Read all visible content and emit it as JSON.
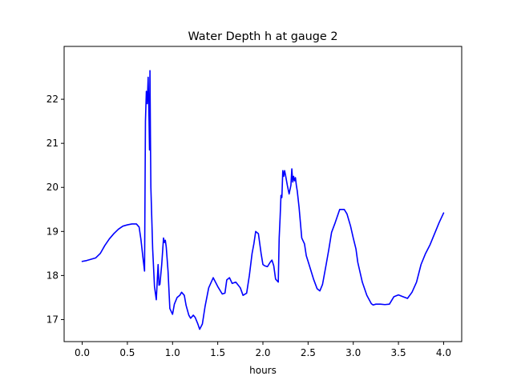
{
  "chart_data": {
    "type": "line",
    "title": "Water Depth h at gauge 2",
    "xlabel": "hours",
    "ylabel": "",
    "xlim": [
      -0.2,
      4.2
    ],
    "ylim": [
      16.5,
      23.2
    ],
    "xticks": [
      0.0,
      0.5,
      1.0,
      1.5,
      2.0,
      2.5,
      3.0,
      3.5,
      4.0
    ],
    "xtick_labels": [
      "0.0",
      "0.5",
      "1.0",
      "1.5",
      "2.0",
      "2.5",
      "3.0",
      "3.5",
      "4.0"
    ],
    "yticks": [
      17,
      18,
      19,
      20,
      21,
      22
    ],
    "ytick_labels": [
      "17",
      "18",
      "19",
      "20",
      "21",
      "22"
    ],
    "grid": false,
    "series": [
      {
        "color": "#0000ff",
        "x": [
          0.0,
          0.05,
          0.1,
          0.15,
          0.2,
          0.25,
          0.3,
          0.35,
          0.4,
          0.45,
          0.5,
          0.55,
          0.6,
          0.63,
          0.65,
          0.67,
          0.69,
          0.7,
          0.71,
          0.72,
          0.73,
          0.74,
          0.745,
          0.75,
          0.755,
          0.76,
          0.77,
          0.78,
          0.8,
          0.82,
          0.84,
          0.85,
          0.86,
          0.88,
          0.9,
          0.91,
          0.92,
          0.93,
          0.95,
          0.97,
          1.0,
          1.02,
          1.05,
          1.08,
          1.1,
          1.13,
          1.15,
          1.18,
          1.2,
          1.23,
          1.25,
          1.28,
          1.3,
          1.33,
          1.36,
          1.4,
          1.45,
          1.5,
          1.55,
          1.58,
          1.6,
          1.63,
          1.66,
          1.7,
          1.75,
          1.78,
          1.82,
          1.85,
          1.88,
          1.9,
          1.92,
          1.95,
          1.98,
          2.0,
          2.02,
          2.05,
          2.08,
          2.1,
          2.12,
          2.14,
          2.17,
          2.18,
          2.19,
          2.2,
          2.21,
          2.22,
          2.23,
          2.24,
          2.25,
          2.27,
          2.29,
          2.31,
          2.32,
          2.33,
          2.34,
          2.35,
          2.36,
          2.37,
          2.38,
          2.4,
          2.43,
          2.46,
          2.48,
          2.5,
          2.53,
          2.56,
          2.6,
          2.63,
          2.66,
          2.7,
          2.73,
          2.76,
          2.8,
          2.85,
          2.9,
          2.93,
          2.97,
          3.0,
          3.03,
          3.05,
          3.1,
          3.15,
          3.2,
          3.22,
          3.25,
          3.3,
          3.35,
          3.4,
          3.45,
          3.5,
          3.55,
          3.6,
          3.65,
          3.7,
          3.75,
          3.8,
          3.85,
          3.9,
          3.95,
          4.0
        ],
        "y": [
          18.32,
          18.34,
          18.37,
          18.4,
          18.5,
          18.68,
          18.83,
          18.95,
          19.05,
          19.12,
          19.15,
          19.17,
          19.17,
          19.1,
          18.82,
          18.45,
          18.1,
          21.5,
          22.18,
          21.9,
          22.5,
          21.5,
          20.85,
          22.65,
          21.2,
          20.0,
          19.3,
          18.6,
          17.75,
          17.45,
          18.25,
          17.78,
          17.8,
          18.25,
          18.85,
          18.75,
          18.8,
          18.65,
          18.1,
          17.25,
          17.12,
          17.35,
          17.5,
          17.55,
          17.62,
          17.55,
          17.32,
          17.1,
          17.03,
          17.1,
          17.05,
          16.9,
          16.78,
          16.9,
          17.3,
          17.72,
          17.95,
          17.75,
          17.58,
          17.6,
          17.9,
          17.95,
          17.82,
          17.85,
          17.72,
          17.55,
          17.6,
          18.0,
          18.5,
          18.72,
          19.0,
          18.95,
          18.5,
          18.25,
          18.22,
          18.2,
          18.3,
          18.35,
          18.22,
          17.92,
          17.85,
          18.85,
          19.3,
          19.82,
          19.77,
          20.38,
          20.25,
          20.38,
          20.28,
          20.05,
          19.85,
          20.05,
          20.42,
          20.12,
          20.25,
          20.15,
          20.22,
          20.05,
          19.92,
          19.55,
          18.85,
          18.72,
          18.45,
          18.32,
          18.12,
          17.92,
          17.7,
          17.65,
          17.8,
          18.25,
          18.6,
          18.98,
          19.2,
          19.5,
          19.5,
          19.4,
          19.12,
          18.85,
          18.6,
          18.3,
          17.85,
          17.55,
          17.36,
          17.33,
          17.35,
          17.35,
          17.34,
          17.35,
          17.52,
          17.56,
          17.52,
          17.48,
          17.62,
          17.85,
          18.25,
          18.5,
          18.7,
          18.95,
          19.2,
          19.42
        ]
      }
    ]
  }
}
